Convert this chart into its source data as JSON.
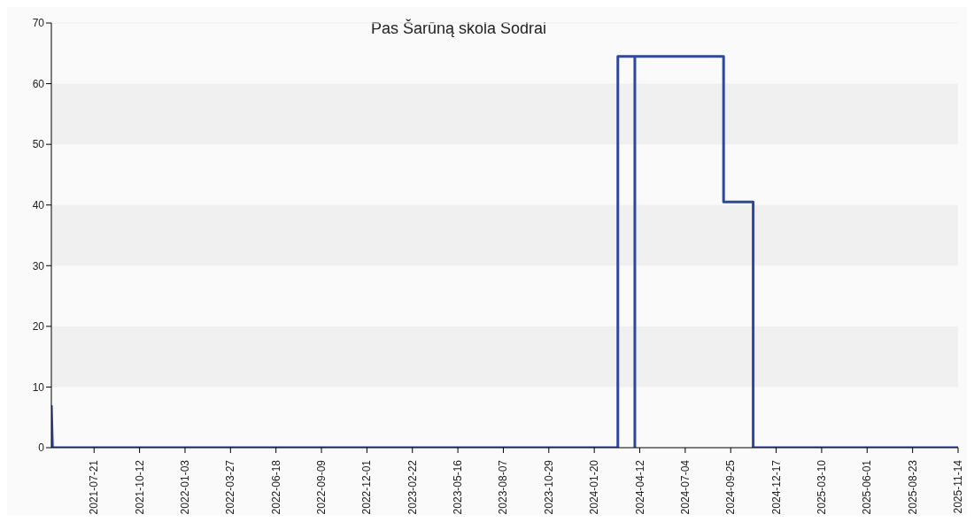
{
  "chart_data": {
    "type": "line",
    "title": "Pas Šarūną skola Sodrai",
    "x": [
      "2021-05-04",
      "2021-05-06",
      "2024-03-03",
      "2024-03-03",
      "2024-04-03",
      "2024-04-03",
      "2024-04-03",
      "2024-09-12",
      "2024-09-12",
      "2024-11-05",
      "2024-11-05",
      "2025-11-14"
    ],
    "series": [
      {
        "color": "#2e47a0",
        "values": [
          7,
          0,
          0,
          64.5,
          64.5,
          0,
          64.5,
          64.5,
          40.5,
          40.5,
          0,
          0
        ]
      }
    ],
    "xlim": [
      "2021-05-04",
      "2025-11-14"
    ],
    "xticks": [
      "2021-07-21",
      "2021-10-12",
      "2022-01-03",
      "2022-03-27",
      "2022-06-18",
      "2022-09-09",
      "2022-12-01",
      "2023-02-22",
      "2023-05-16",
      "2023-08-07",
      "2023-10-29",
      "2024-01-20",
      "2024-04-12",
      "2024-07-04",
      "2024-09-25",
      "2024-12-17",
      "2025-03-10",
      "2025-06-01",
      "2025-08-23",
      "2025-11-14"
    ],
    "ylim": [
      0,
      70
    ],
    "yticks": [
      0,
      10,
      20,
      30,
      40,
      50,
      60,
      70
    ],
    "marker": "none",
    "line_style": "solid"
  }
}
